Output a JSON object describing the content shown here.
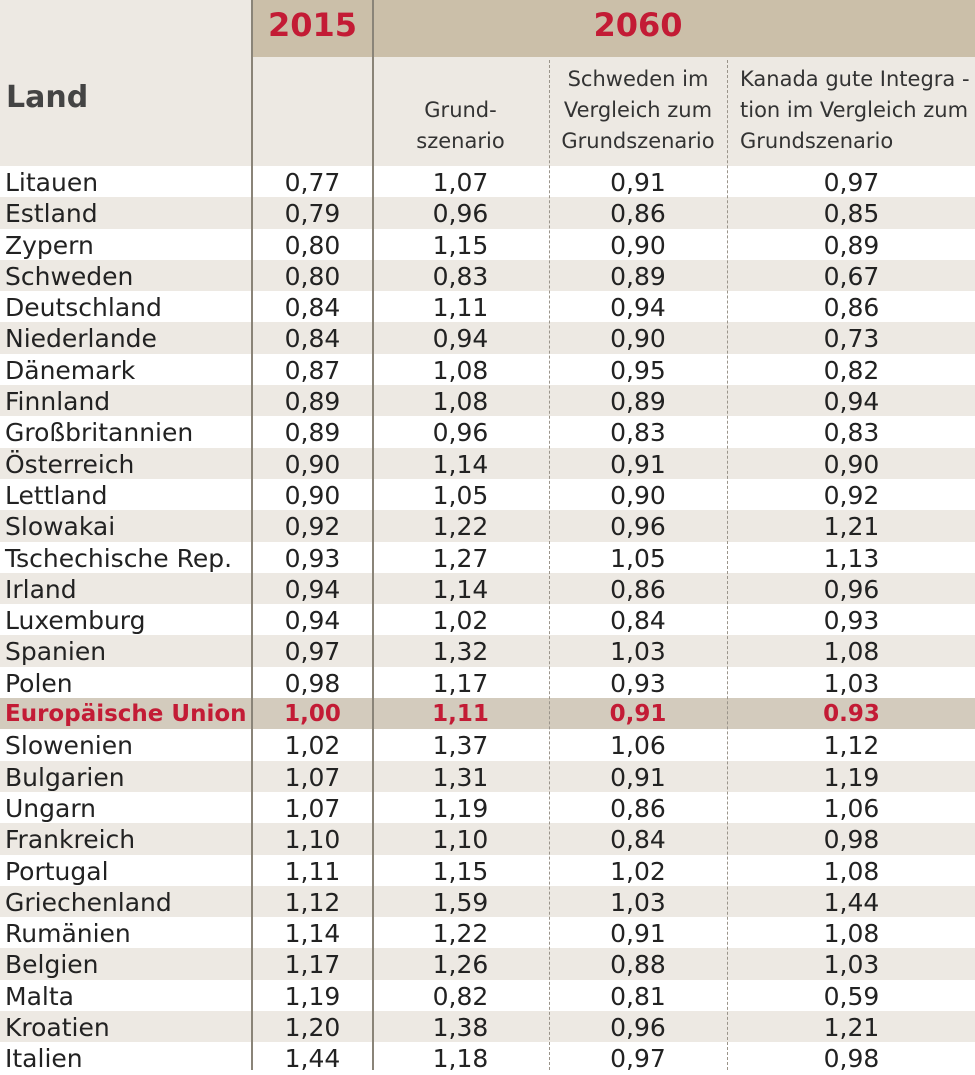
{
  "chart_data": {
    "type": "table",
    "header": {
      "land": "Land",
      "year_2015": "2015",
      "year_2060": "2060",
      "col_grund": [
        "Grund-",
        "szenario"
      ],
      "col_schweden": [
        "Schweden im",
        "Vergleich zum",
        "Grundszenario"
      ],
      "col_kanada": [
        "Kanada gute Integra -",
        "tion im Vergleich zum",
        "Grundszenario"
      ]
    },
    "columns": [
      "Land",
      "2015",
      "Grundszenario",
      "Schweden im Vergleich zum Grundszenario",
      "Kanada gute Integration im Vergleich zum Grundszenario"
    ],
    "highlight_color": "#c31b35",
    "highlight_row": "Europäische Union",
    "rows": [
      [
        "Litauen",
        "0,77",
        "1,07",
        "0,91",
        "0,97"
      ],
      [
        "Estland",
        "0,79",
        "0,96",
        "0,86",
        "0,85"
      ],
      [
        "Zypern",
        "0,80",
        "1,15",
        "0,90",
        "0,89"
      ],
      [
        "Schweden",
        "0,80",
        "0,83",
        "0,89",
        "0,67"
      ],
      [
        "Deutschland",
        "0,84",
        "1,11",
        "0,94",
        "0,86"
      ],
      [
        "Niederlande",
        "0,84",
        "0,94",
        "0,90",
        "0,73"
      ],
      [
        "Dänemark",
        "0,87",
        "1,08",
        "0,95",
        "0,82"
      ],
      [
        "Finnland",
        "0,89",
        "1,08",
        "0,89",
        "0,94"
      ],
      [
        "Großbritannien",
        "0,89",
        "0,96",
        "0,83",
        "0,83"
      ],
      [
        "Österreich",
        "0,90",
        "1,14",
        "0,91",
        "0,90"
      ],
      [
        "Lettland",
        "0,90",
        "1,05",
        "0,90",
        "0,92"
      ],
      [
        "Slowakai",
        "0,92",
        "1,22",
        "0,96",
        "1,21"
      ],
      [
        "Tschechische Rep.",
        "0,93",
        "1,27",
        "1,05",
        "1,13"
      ],
      [
        "Irland",
        "0,94",
        "1,14",
        "0,86",
        "0,96"
      ],
      [
        "Luxemburg",
        "0,94",
        "1,02",
        "0,84",
        "0,93"
      ],
      [
        "Spanien",
        "0,97",
        "1,32",
        "1,03",
        "1,08"
      ],
      [
        "Polen",
        "0,98",
        "1,17",
        "0,93",
        "1,03"
      ],
      [
        "Europäische Union",
        "1,00",
        "1,11",
        "0,91",
        "0.93"
      ],
      [
        "Slowenien",
        "1,02",
        "1,37",
        "1,06",
        "1,12"
      ],
      [
        "Bulgarien",
        "1,07",
        "1,31",
        "0,91",
        "1,19"
      ],
      [
        "Ungarn",
        "1,07",
        "1,19",
        "0,86",
        "1,06"
      ],
      [
        "Frankreich",
        "1,10",
        "1,10",
        "0,84",
        "0,98"
      ],
      [
        "Portugal",
        "1,11",
        "1,15",
        "1,02",
        "1,08"
      ],
      [
        "Griechenland",
        "1,12",
        "1,59",
        "1,03",
        "1,44"
      ],
      [
        "Rumänien",
        "1,14",
        "1,22",
        "0,91",
        "1,08"
      ],
      [
        "Belgien",
        "1,17",
        "1,26",
        "0,88",
        "1,03"
      ],
      [
        "Malta",
        "1,19",
        "0,82",
        "0,81",
        "0,59"
      ],
      [
        "Kroatien",
        "1,20",
        "1,38",
        "0,96",
        "1,21"
      ],
      [
        "Italien",
        "1,44",
        "1,18",
        "0,97",
        "0,98"
      ]
    ]
  }
}
